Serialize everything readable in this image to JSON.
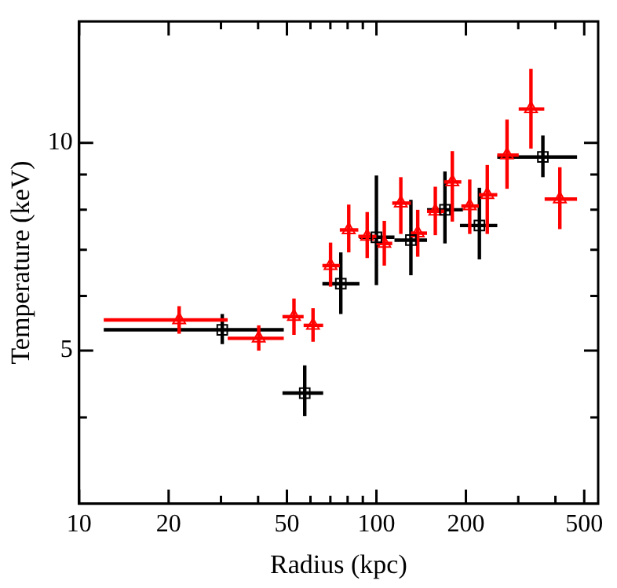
{
  "chart_data": {
    "type": "scatter",
    "xlabel": "Radius (kpc)",
    "ylabel": "Temperature (keV)",
    "log": "xy",
    "grid": false,
    "legend": false,
    "xlim": [
      10,
      557
    ],
    "xticks": [
      10,
      20,
      {
        "value": 30,
        "label": null
      },
      {
        "value": 40,
        "label": null
      },
      50,
      {
        "value": 60,
        "label": null
      },
      {
        "value": 70,
        "label": null
      },
      {
        "value": 80,
        "label": null
      },
      {
        "value": 90,
        "label": null
      },
      100,
      200,
      {
        "value": 300,
        "label": null
      },
      {
        "value": 400,
        "label": null
      },
      500
    ],
    "ylim": [
      3,
      15
    ],
    "yticks": [
      {
        "value": 4,
        "label": null
      },
      5,
      {
        "value": 6,
        "label": null
      },
      {
        "value": 7,
        "label": null
      },
      {
        "value": 8,
        "label": null
      },
      {
        "value": 9,
        "label": null
      },
      10
    ],
    "series": [
      {
        "color": "#000000",
        "marker": "square",
        "x": [
          30.3,
          57.4,
          75.9,
          100,
          130.6,
          170,
          222,
          363
        ],
        "values": [
          5.36,
          4.34,
          6.25,
          7.3,
          7.23,
          8.0,
          7.59,
          9.54
        ],
        "xerrors": [
          [
            12.1,
            48.8
          ],
          [
            48.3,
            66.2
          ],
          [
            65.8,
            87.7
          ],
          [
            87.7,
            115
          ],
          [
            115,
            148
          ],
          [
            148,
            195.5
          ],
          [
            191,
            255
          ],
          [
            255,
            473
          ]
        ],
        "errors": [
          [
            5.11,
            5.65
          ],
          [
            4.02,
            4.76
          ],
          [
            5.65,
            6.94
          ],
          [
            6.22,
            8.97
          ],
          [
            6.43,
            8.27
          ],
          [
            7.15,
            9.09
          ],
          [
            6.78,
            8.61
          ],
          [
            8.92,
            10.25
          ]
        ]
      },
      {
        "color": "#ff0000",
        "marker": "triangle",
        "x": [
          21.7,
          40.2,
          52.8,
          61.2,
          70.1,
          80.7,
          93.1,
          106.3,
          120.8,
          137.7,
          157.8,
          180,
          206,
          236,
          275,
          331,
          414
        ],
        "values": [
          5.54,
          5.21,
          5.6,
          5.44,
          6.64,
          7.48,
          7.32,
          7.15,
          8.18,
          7.4,
          7.96,
          8.78,
          8.1,
          8.41,
          9.6,
          11.2,
          8.29
        ],
        "xerrors": [
          [
            12.1,
            31.6
          ],
          [
            31.6,
            48.8
          ],
          [
            48.3,
            56.9
          ],
          [
            56.9,
            66.2
          ],
          [
            65.8,
            75.3
          ],
          [
            75.3,
            86.9
          ],
          [
            86.9,
            100
          ],
          [
            100,
            113
          ],
          [
            113,
            130.6
          ],
          [
            130.6,
            148
          ],
          [
            148,
            169
          ],
          [
            169,
            193
          ],
          [
            193,
            221
          ],
          [
            221,
            255
          ],
          [
            255,
            301
          ],
          [
            301,
            367
          ],
          [
            368,
            473
          ]
        ],
        "errors": [
          [
            5.29,
            5.8
          ],
          [
            5.0,
            5.44
          ],
          [
            5.27,
            5.95
          ],
          [
            5.15,
            5.76
          ],
          [
            6.19,
            7.17
          ],
          [
            6.94,
            8.14
          ],
          [
            6.81,
            7.94
          ],
          [
            6.64,
            7.71
          ],
          [
            7.38,
            8.92
          ],
          [
            6.84,
            8.0
          ],
          [
            7.35,
            8.64
          ],
          [
            7.69,
            9.73
          ],
          [
            7.38,
            8.85
          ],
          [
            7.38,
            9.29
          ],
          [
            8.58,
            10.81
          ],
          [
            9.81,
            12.8
          ],
          [
            7.5,
            9.22
          ]
        ]
      }
    ]
  }
}
